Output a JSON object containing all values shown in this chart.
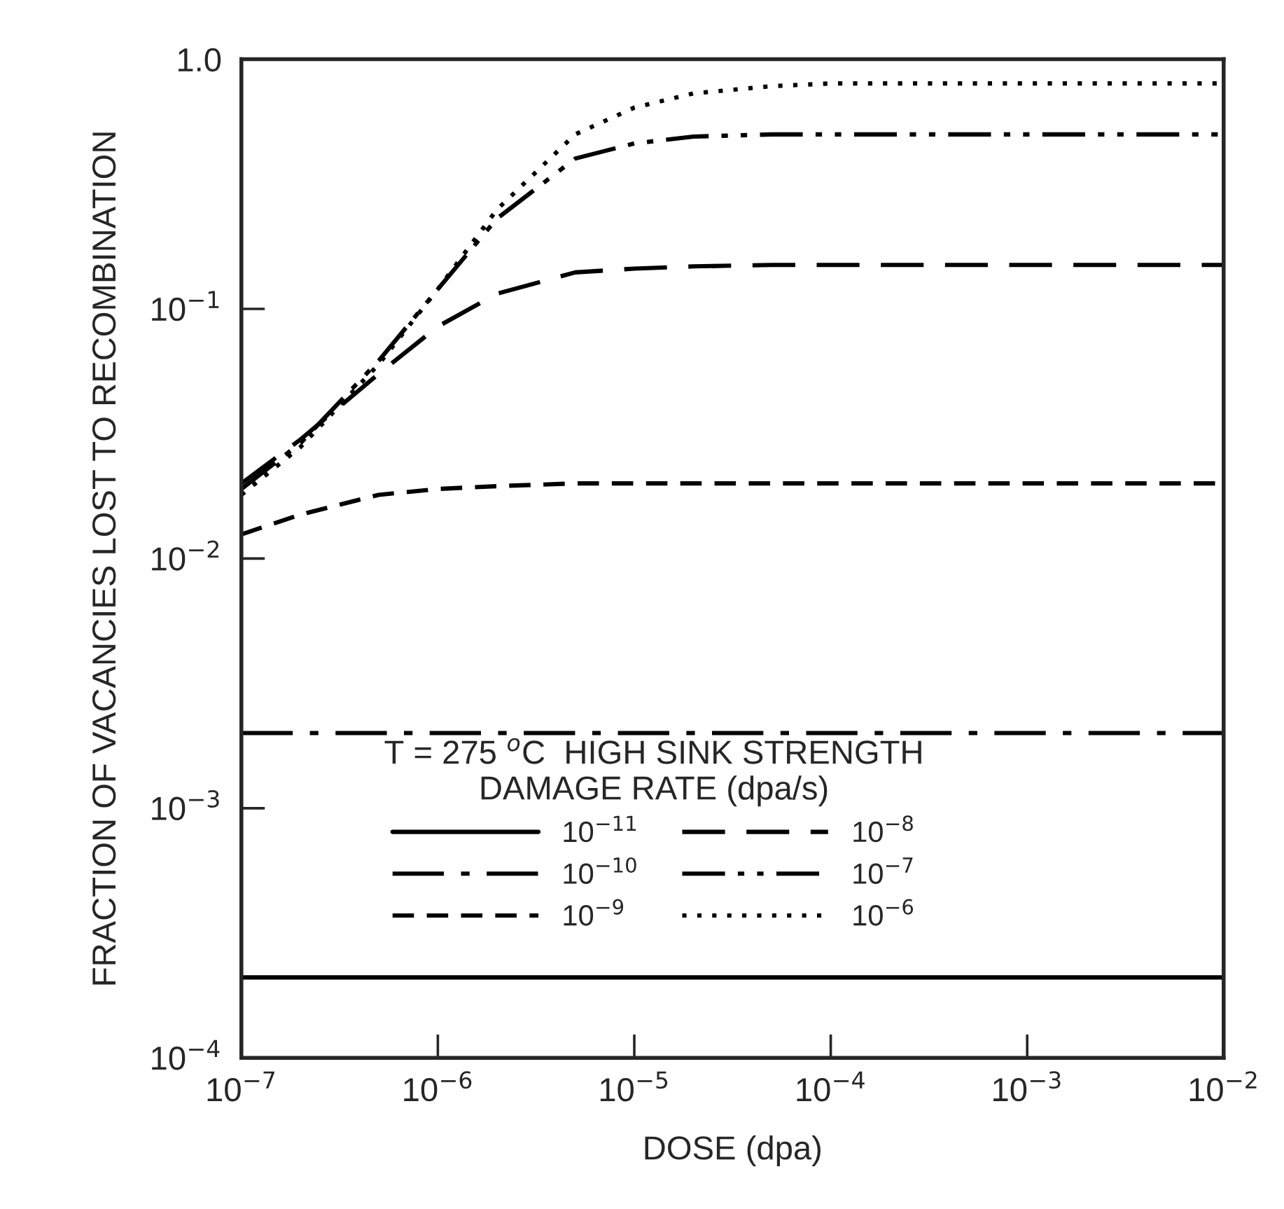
{
  "chart_data": {
    "type": "line",
    "xlabel": "DOSE (dpa)",
    "ylabel": "FRACTION OF VACANCIES LOST TO RECOMBINATION",
    "legend_title": "T = 275 $^{o}$C  HIGH SINK STRENGTH\nDAMAGE RATE (dpa/s)",
    "log": "xy",
    "grid": false,
    "legend": "bottom",
    "xlim": [
      1e-07,
      0.01
    ],
    "ylim": [
      0.0001,
      1.0
    ],
    "xticks": [
      {
        "value": 1e-07,
        "label": "10$^{−7}$"
      },
      {
        "value": 1e-06,
        "label": "10$^{−6}$"
      },
      {
        "value": 1e-05,
        "label": "10$^{−5}$"
      },
      {
        "value": 0.0001,
        "label": "10$^{−4}$"
      },
      {
        "value": 0.001,
        "label": "10$^{−3}$"
      },
      {
        "value": 0.01,
        "label": "10$^{−2}$"
      }
    ],
    "yticks": [
      {
        "value": 0.0001,
        "label": "10$^{−4}$"
      },
      {
        "value": 0.001,
        "label": "10$^{−3}$"
      },
      {
        "value": 0.01,
        "label": "10$^{−2}$"
      },
      {
        "value": 0.1,
        "label": "10$^{−1}$"
      },
      {
        "value": 1.0,
        "label": "1.0"
      }
    ],
    "x": [
      1e-07,
      2e-07,
      5e-07,
      1e-06,
      2e-06,
      5e-06,
      1e-05,
      2e-05,
      5e-05,
      0.0001,
      0.001,
      0.01
    ],
    "series": [
      {
        "name": "10$^{−11}$",
        "color": "#000000",
        "line_style": "solid",
        "values": [
          0.00021,
          0.00021,
          0.00021,
          0.00021,
          0.00021,
          0.00021,
          0.00021,
          0.00021,
          0.00021,
          0.00021,
          0.00021,
          0.00021
        ]
      },
      {
        "name": "10$^{−10}$",
        "color": "#000000",
        "line_style": "dashdot",
        "values": [
          0.002,
          0.002,
          0.002,
          0.002,
          0.002,
          0.002,
          0.002,
          0.002,
          0.002,
          0.002,
          0.002,
          0.002
        ]
      },
      {
        "name": "10$^{−9}$",
        "color": "#000000",
        "line_style": "dashed",
        "values": [
          0.0125,
          0.015,
          0.018,
          0.019,
          0.0195,
          0.02,
          0.02,
          0.02,
          0.02,
          0.02,
          0.02,
          0.02
        ]
      },
      {
        "name": "10$^{−8}$",
        "color": "#000000",
        "line_style": "longdash",
        "values": [
          0.02,
          0.03,
          0.055,
          0.085,
          0.115,
          0.14,
          0.145,
          0.148,
          0.15,
          0.15,
          0.15,
          0.15
        ]
      },
      {
        "name": "10$^{−7}$",
        "color": "#000000",
        "line_style": "dashdotdot",
        "values": [
          0.019,
          0.029,
          0.062,
          0.12,
          0.23,
          0.4,
          0.46,
          0.49,
          0.5,
          0.5,
          0.5,
          0.5
        ]
      },
      {
        "name": "10$^{−6}$",
        "color": "#000000",
        "line_style": "dotted",
        "values": [
          0.018,
          0.028,
          0.06,
          0.12,
          0.25,
          0.5,
          0.64,
          0.73,
          0.78,
          0.8,
          0.8,
          0.8
        ]
      }
    ]
  }
}
